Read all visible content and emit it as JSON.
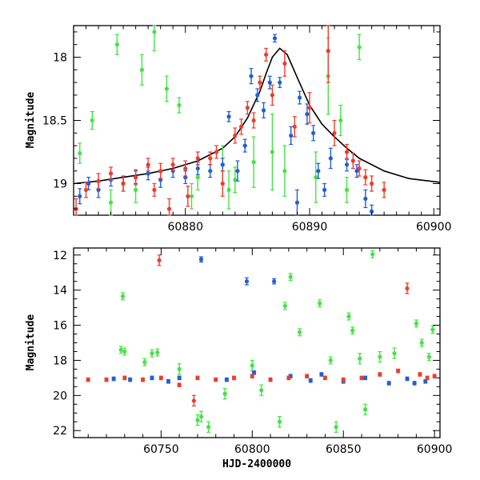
{
  "colors": {
    "green": "#44e344",
    "blue": "#1f5fd6",
    "red": "#ef3b2c",
    "model": "#000000"
  },
  "chart_data": [
    {
      "type": "scatter",
      "panel": "top",
      "xlabel": "",
      "ylabel": "Magnitude",
      "xlim": [
        60871,
        60900.5
      ],
      "ylim": [
        19.25,
        17.75
      ],
      "y_inverted": true,
      "xticks": [
        60880,
        60890,
        60900
      ],
      "xtick_labels": [
        "60880",
        "60890",
        "60900"
      ],
      "yticks": [
        18,
        18.5,
        19
      ],
      "ytick_labels": [
        "18",
        "18.5",
        "19"
      ],
      "model_curve": {
        "description": "black peaked light curve",
        "x": [
          60871,
          60873,
          60875,
          60877,
          60879,
          60881,
          60883,
          60884,
          60885,
          60886,
          60886.5,
          60887,
          60887.6,
          60888.2,
          60889,
          60890,
          60891,
          60892,
          60893,
          60894,
          60896,
          60898,
          60900.5
        ],
        "y": [
          19.0,
          18.98,
          18.95,
          18.92,
          18.88,
          18.82,
          18.72,
          18.63,
          18.48,
          18.27,
          18.13,
          18.0,
          17.93,
          17.98,
          18.16,
          18.38,
          18.53,
          18.63,
          18.72,
          18.8,
          18.9,
          18.96,
          18.99
        ]
      },
      "series": [
        {
          "color": "green",
          "points": [
            [
              60871.5,
              18.76,
              0.08
            ],
            [
              60872.5,
              18.5,
              0.07
            ],
            [
              60874.5,
              17.9,
              0.08
            ],
            [
              60876.5,
              18.1,
              0.12
            ],
            [
              60877.5,
              17.8,
              0.15
            ],
            [
              60878.5,
              18.25,
              0.1
            ],
            [
              60879.5,
              18.38,
              0.06
            ],
            [
              60881,
              18.95,
              0.1
            ],
            [
              60883,
              18.85,
              0.15
            ],
            [
              60884,
              18.97,
              0.1
            ],
            [
              60885.5,
              18.83,
              0.2
            ],
            [
              60887,
              18.75,
              0.3
            ],
            [
              60888,
              18.9,
              0.2
            ],
            [
              60890.5,
              18.95,
              0.2
            ],
            [
              60891.5,
              18.15,
              0.3
            ],
            [
              60892.5,
              18.5,
              0.12
            ],
            [
              60893,
              19.05,
              0.1
            ],
            [
              60894,
              17.92,
              0.1
            ],
            [
              60874,
              19.15,
              0.1
            ],
            [
              60876,
              19.05,
              0.1
            ],
            [
              60880.5,
              19.1,
              0.1
            ],
            [
              60883.5,
              19.05,
              0.15
            ]
          ]
        },
        {
          "color": "blue",
          "points": [
            [
              60871.5,
              19.1,
              0.06
            ],
            [
              60872.2,
              19.0,
              0.05
            ],
            [
              60873,
              19.05,
              0.06
            ],
            [
              60874,
              18.97,
              0.05
            ],
            [
              60875,
              19.0,
              0.06
            ],
            [
              60876,
              18.95,
              0.05
            ],
            [
              60877,
              18.92,
              0.05
            ],
            [
              60878,
              18.97,
              0.06
            ],
            [
              60879,
              18.9,
              0.05
            ],
            [
              60880,
              18.95,
              0.05
            ],
            [
              60881,
              18.88,
              0.05
            ],
            [
              60882,
              18.9,
              0.05
            ],
            [
              60883,
              18.85,
              0.05
            ],
            [
              60883.5,
              18.47,
              0.04
            ],
            [
              60884.2,
              18.9,
              0.08
            ],
            [
              60884.8,
              18.7,
              0.05
            ],
            [
              60885.3,
              18.15,
              0.06
            ],
            [
              60885.8,
              18.3,
              0.05
            ],
            [
              60886.3,
              18.42,
              0.06
            ],
            [
              60886.8,
              18.2,
              0.05
            ],
            [
              60887.2,
              17.85,
              0.03
            ],
            [
              60887.6,
              18.2,
              0.04
            ],
            [
              60888.5,
              18.62,
              0.07
            ],
            [
              60889.2,
              18.32,
              0.05
            ],
            [
              60889.8,
              18.45,
              0.08
            ],
            [
              60890.3,
              18.6,
              0.06
            ],
            [
              60890.7,
              18.9,
              0.06
            ],
            [
              60891.2,
              19.05,
              0.05
            ],
            [
              60891.7,
              18.8,
              0.08
            ],
            [
              60893,
              18.85,
              0.05
            ],
            [
              60893.8,
              18.9,
              0.05
            ],
            [
              60894.5,
              19.12,
              0.07
            ],
            [
              60895,
              19.22,
              0.05
            ],
            [
              60889,
              19.15,
              0.1
            ]
          ]
        },
        {
          "color": "red",
          "points": [
            [
              60871.2,
              19.2,
              0.08
            ],
            [
              60872,
              19.05,
              0.06
            ],
            [
              60873,
              18.98,
              0.06
            ],
            [
              60874,
              18.92,
              0.05
            ],
            [
              60875,
              19.0,
              0.06
            ],
            [
              60876,
              18.95,
              0.06
            ],
            [
              60877,
              18.85,
              0.05
            ],
            [
              60877.5,
              19.05,
              0.05
            ],
            [
              60878,
              18.9,
              0.06
            ],
            [
              60879,
              18.85,
              0.05
            ],
            [
              60880,
              18.88,
              0.06
            ],
            [
              60881,
              18.8,
              0.05
            ],
            [
              60882,
              18.8,
              0.05
            ],
            [
              60882.5,
              18.75,
              0.05
            ],
            [
              60883,
              19.0,
              0.1
            ],
            [
              60884,
              18.62,
              0.06
            ],
            [
              60884.5,
              18.55,
              0.06
            ],
            [
              60885,
              18.4,
              0.05
            ],
            [
              60885.5,
              18.5,
              0.06
            ],
            [
              60886,
              18.2,
              0.05
            ],
            [
              60886.5,
              17.98,
              0.05
            ],
            [
              60887,
              18.3,
              0.08
            ],
            [
              60888,
              18.05,
              0.1
            ],
            [
              60888.8,
              18.55,
              0.08
            ],
            [
              60890,
              18.4,
              0.12
            ],
            [
              60891.5,
              17.95,
              0.25
            ],
            [
              60892,
              18.6,
              0.1
            ],
            [
              60893,
              18.75,
              0.06
            ],
            [
              60893.5,
              18.82,
              0.06
            ],
            [
              60894,
              18.88,
              0.06
            ],
            [
              60894.5,
              18.95,
              0.06
            ],
            [
              60895,
              19.0,
              0.06
            ],
            [
              60896,
              19.05,
              0.06
            ],
            [
              60878.7,
              19.2,
              0.08
            ],
            [
              60880.2,
              19.1,
              0.08
            ]
          ]
        }
      ]
    },
    {
      "type": "scatter",
      "panel": "bottom",
      "xlabel": "HJD-2400000",
      "ylabel": "Magnitude",
      "xlim": [
        60702,
        60903
      ],
      "ylim": [
        22.4,
        11.6
      ],
      "y_inverted": true,
      "xticks": [
        60750,
        60800,
        60850,
        60900
      ],
      "xtick_labels": [
        "60750",
        "60800",
        "60850",
        "60900"
      ],
      "yticks": [
        12,
        14,
        16,
        18,
        20,
        22
      ],
      "ytick_labels": [
        "12",
        "14",
        "16",
        "18",
        "20",
        "22"
      ],
      "series": [
        {
          "color": "green",
          "points": [
            [
              60729,
              14.35,
              0.2
            ],
            [
              60728,
              17.4,
              0.2
            ],
            [
              60730,
              17.5,
              0.2
            ],
            [
              60741,
              18.1,
              0.2
            ],
            [
              60745,
              17.6,
              0.2
            ],
            [
              60748,
              17.55,
              0.2
            ],
            [
              60760,
              18.5,
              0.3
            ],
            [
              60770,
              21.4,
              0.3
            ],
            [
              60772,
              21.2,
              0.3
            ],
            [
              60776,
              21.8,
              0.3
            ],
            [
              60785,
              19.9,
              0.3
            ],
            [
              60800,
              18.3,
              0.3
            ],
            [
              60805,
              19.7,
              0.3
            ],
            [
              60815,
              21.5,
              0.3
            ],
            [
              60818,
              14.9,
              0.2
            ],
            [
              60821,
              13.25,
              0.2
            ],
            [
              60826,
              16.4,
              0.2
            ],
            [
              60837,
              14.75,
              0.2
            ],
            [
              60843,
              18.0,
              0.2
            ],
            [
              60846,
              21.8,
              0.3
            ],
            [
              60853,
              15.5,
              0.2
            ],
            [
              60855,
              16.3,
              0.2
            ],
            [
              60859,
              17.9,
              0.3
            ],
            [
              60862,
              20.8,
              0.3
            ],
            [
              60866,
              11.95,
              0.2
            ],
            [
              60870,
              17.8,
              0.3
            ],
            [
              60878,
              17.6,
              0.3
            ],
            [
              60890,
              15.9,
              0.2
            ],
            [
              60893,
              17.0,
              0.2
            ],
            [
              60897,
              17.8,
              0.2
            ],
            [
              60899,
              16.25,
              0.2
            ]
          ]
        },
        {
          "color": "blue",
          "points": [
            [
              60724,
              19.05,
              0.1
            ],
            [
              60733,
              19.1,
              0.1
            ],
            [
              60745,
              19.0,
              0.1
            ],
            [
              60754,
              19.2,
              0.1
            ],
            [
              60760,
              19.0,
              0.1
            ],
            [
              60772,
              12.25,
              0.15
            ],
            [
              60786,
              19.1,
              0.1
            ],
            [
              60797,
              13.5,
              0.2
            ],
            [
              60801,
              18.7,
              0.1
            ],
            [
              60812,
              13.5,
              0.15
            ],
            [
              60821,
              18.9,
              0.1
            ],
            [
              60832,
              19.15,
              0.1
            ],
            [
              60838,
              18.8,
              0.1
            ],
            [
              60850,
              19.2,
              0.1
            ],
            [
              60862,
              19.0,
              0.1
            ],
            [
              60875,
              19.3,
              0.1
            ],
            [
              60885,
              19.05,
              0.1
            ],
            [
              60889,
              19.3,
              0.1
            ],
            [
              60895,
              19.2,
              0.1
            ]
          ]
        },
        {
          "color": "red",
          "points": [
            [
              60710,
              19.1,
              0.1
            ],
            [
              60720,
              19.1,
              0.1
            ],
            [
              60730,
              19.0,
              0.1
            ],
            [
              60740,
              19.1,
              0.1
            ],
            [
              60749,
              12.3,
              0.3
            ],
            [
              60750,
              19.0,
              0.1
            ],
            [
              60760,
              19.4,
              0.1
            ],
            [
              60768,
              20.3,
              0.3
            ],
            [
              60770,
              19.0,
              0.1
            ],
            [
              60780,
              19.1,
              0.1
            ],
            [
              60790,
              19.0,
              0.1
            ],
            [
              60800,
              18.9,
              0.1
            ],
            [
              60810,
              19.1,
              0.1
            ],
            [
              60820,
              19.0,
              0.1
            ],
            [
              60830,
              18.9,
              0.1
            ],
            [
              60840,
              19.0,
              0.1
            ],
            [
              60850,
              19.1,
              0.1
            ],
            [
              60860,
              19.0,
              0.1
            ],
            [
              60870,
              18.8,
              0.1
            ],
            [
              60880,
              18.6,
              0.1
            ],
            [
              60885,
              13.9,
              0.3
            ],
            [
              60892,
              18.8,
              0.1
            ],
            [
              60896,
              19.0,
              0.1
            ],
            [
              60900,
              18.9,
              0.1
            ]
          ]
        }
      ]
    }
  ]
}
